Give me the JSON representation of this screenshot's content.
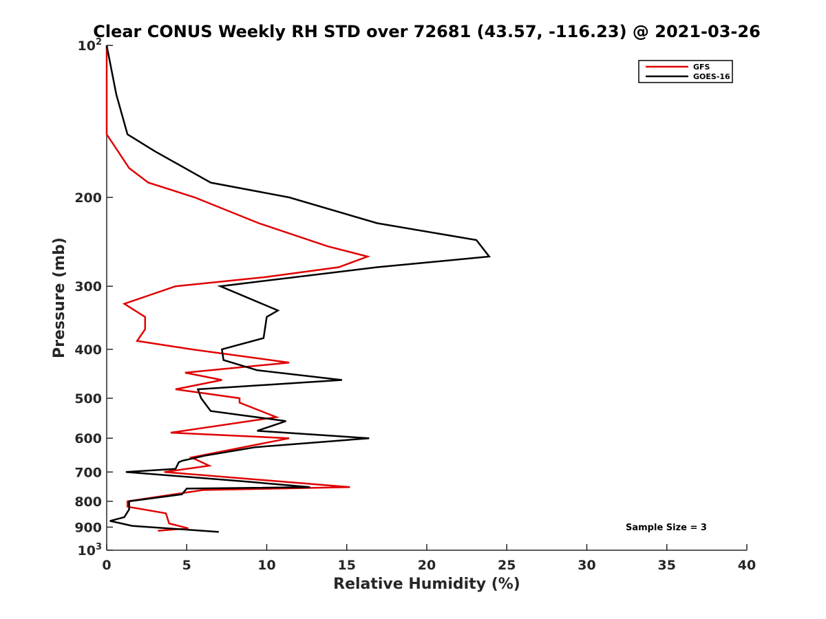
{
  "chart_data": {
    "type": "line",
    "title": "Clear CONUS Weekly RH STD over 72681 (43.57, -116.23) @ 2021-03-26",
    "xlabel": "Relative Humidity (%)",
    "ylabel": "Pressure (mb)",
    "xlim": [
      0,
      40
    ],
    "ylim": [
      100,
      1000
    ],
    "y_scale": "log",
    "y_reversed": true,
    "x_ticks": [
      "0",
      "5",
      "10",
      "15",
      "20",
      "25",
      "30",
      "35",
      "40"
    ],
    "y_ticks": [
      {
        "value": 100,
        "base": "10",
        "exp": "2"
      },
      {
        "value": 200,
        "label": "200"
      },
      {
        "value": 300,
        "label": "300"
      },
      {
        "value": 400,
        "label": "400"
      },
      {
        "value": 500,
        "label": "500"
      },
      {
        "value": 600,
        "label": "600"
      },
      {
        "value": 700,
        "label": "700"
      },
      {
        "value": 800,
        "label": "800"
      },
      {
        "value": 900,
        "label": "900"
      },
      {
        "value": 1000,
        "base": "10",
        "exp": "3"
      }
    ],
    "grid": false,
    "legend_position": "top-right",
    "annotation": "Sample Size = 3",
    "series": [
      {
        "name": "GFS",
        "color": "#e00000",
        "points": [
          [
            0.0,
            100
          ],
          [
            0.0,
            125
          ],
          [
            0.0,
            150
          ],
          [
            0.7,
            162
          ],
          [
            1.4,
            175
          ],
          [
            2.6,
            187
          ],
          [
            5.5,
            200
          ],
          [
            9.5,
            225
          ],
          [
            13.8,
            250
          ],
          [
            16.3,
            262
          ],
          [
            14.5,
            275
          ],
          [
            9.8,
            288
          ],
          [
            4.3,
            300
          ],
          [
            1.1,
            325
          ],
          [
            2.4,
            345
          ],
          [
            2.4,
            365
          ],
          [
            1.9,
            385
          ],
          [
            5.3,
            400
          ],
          [
            11.4,
            425
          ],
          [
            4.9,
            445
          ],
          [
            7.2,
            460
          ],
          [
            4.3,
            480
          ],
          [
            8.3,
            500
          ],
          [
            8.3,
            510
          ],
          [
            10.6,
            545
          ],
          [
            4.0,
            585
          ],
          [
            11.4,
            600
          ],
          [
            5.3,
            655
          ],
          [
            6.4,
            680
          ],
          [
            3.6,
            700
          ],
          [
            15.2,
            750
          ],
          [
            6.0,
            760
          ],
          [
            1.3,
            800
          ],
          [
            1.3,
            820
          ],
          [
            3.7,
            845
          ],
          [
            3.9,
            885
          ],
          [
            5.1,
            905
          ],
          [
            3.2,
            915
          ]
        ]
      },
      {
        "name": "GOES-16",
        "color": "#000000",
        "points": [
          [
            0.0,
            100
          ],
          [
            0.6,
            125
          ],
          [
            1.3,
            150
          ],
          [
            3.0,
            162
          ],
          [
            6.5,
            187
          ],
          [
            11.4,
            200
          ],
          [
            16.9,
            225
          ],
          [
            23.1,
            243
          ],
          [
            23.9,
            262
          ],
          [
            16.9,
            275
          ],
          [
            7.1,
            300
          ],
          [
            10.7,
            335
          ],
          [
            10.0,
            345
          ],
          [
            9.8,
            380
          ],
          [
            7.2,
            400
          ],
          [
            7.3,
            420
          ],
          [
            9.4,
            440
          ],
          [
            14.7,
            460
          ],
          [
            5.7,
            480
          ],
          [
            5.9,
            500
          ],
          [
            6.5,
            530
          ],
          [
            11.2,
            555
          ],
          [
            9.4,
            580
          ],
          [
            16.4,
            600
          ],
          [
            9.3,
            625
          ],
          [
            6.1,
            650
          ],
          [
            4.7,
            665
          ],
          [
            4.5,
            670
          ],
          [
            4.3,
            690
          ],
          [
            1.2,
            700
          ],
          [
            8.5,
            730
          ],
          [
            12.7,
            750
          ],
          [
            5.0,
            755
          ],
          [
            4.7,
            775
          ],
          [
            1.4,
            800
          ],
          [
            1.4,
            830
          ],
          [
            1.1,
            860
          ],
          [
            0.2,
            875
          ],
          [
            1.6,
            895
          ],
          [
            7.0,
            920
          ]
        ]
      }
    ]
  }
}
